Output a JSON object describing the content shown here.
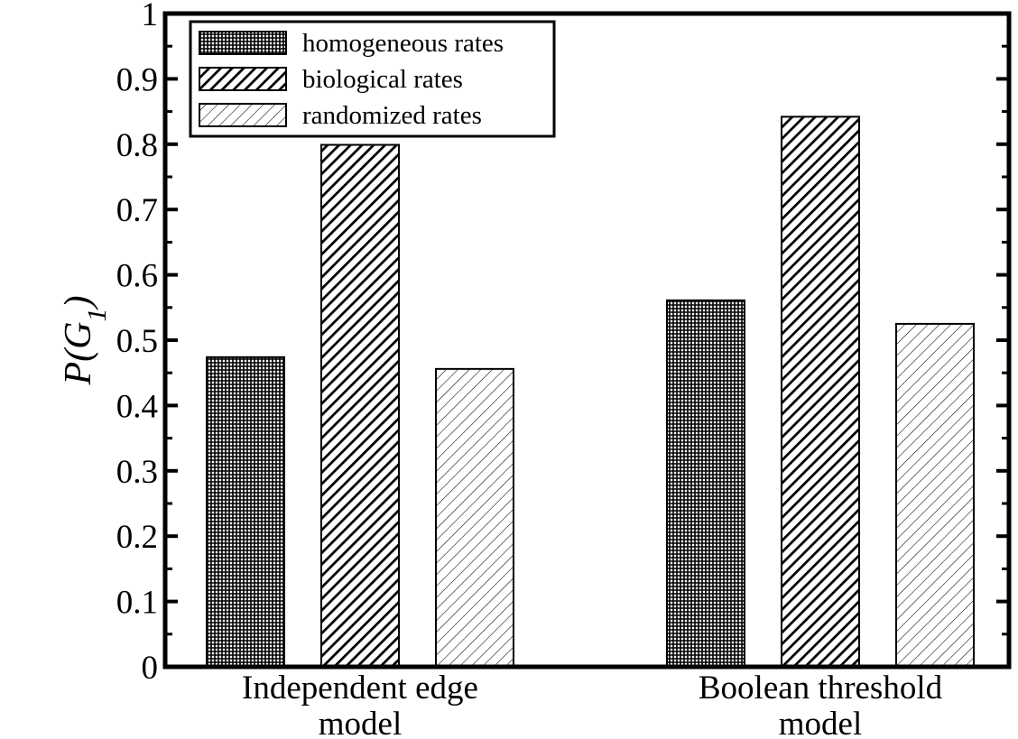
{
  "chart_data": {
    "type": "bar",
    "title": "",
    "xlabel": "",
    "ylabel": "P(G1)",
    "ylabel_parts": {
      "main": "P(G",
      "sub": "1",
      "close": ")"
    },
    "ylim": [
      0,
      1
    ],
    "yticks": [
      "0",
      "0.1",
      "0.2",
      "0.3",
      "0.4",
      "0.5",
      "0.6",
      "0.7",
      "0.8",
      "0.9",
      "1"
    ],
    "categories": [
      {
        "lines": [
          "Independent edge",
          "model"
        ]
      },
      {
        "lines": [
          "Boolean threshold",
          "model"
        ]
      }
    ],
    "series": [
      {
        "name": "homogeneous rates",
        "pattern": "crosshatch",
        "values": [
          0.474,
          0.561
        ]
      },
      {
        "name": "biological rates",
        "pattern": "dense-diagonal",
        "values": [
          0.799,
          0.842
        ]
      },
      {
        "name": "randomized rates",
        "pattern": "sparse-diagonal",
        "values": [
          0.456,
          0.525
        ]
      }
    ],
    "legend": {
      "position": "top-left"
    },
    "grid": false
  }
}
